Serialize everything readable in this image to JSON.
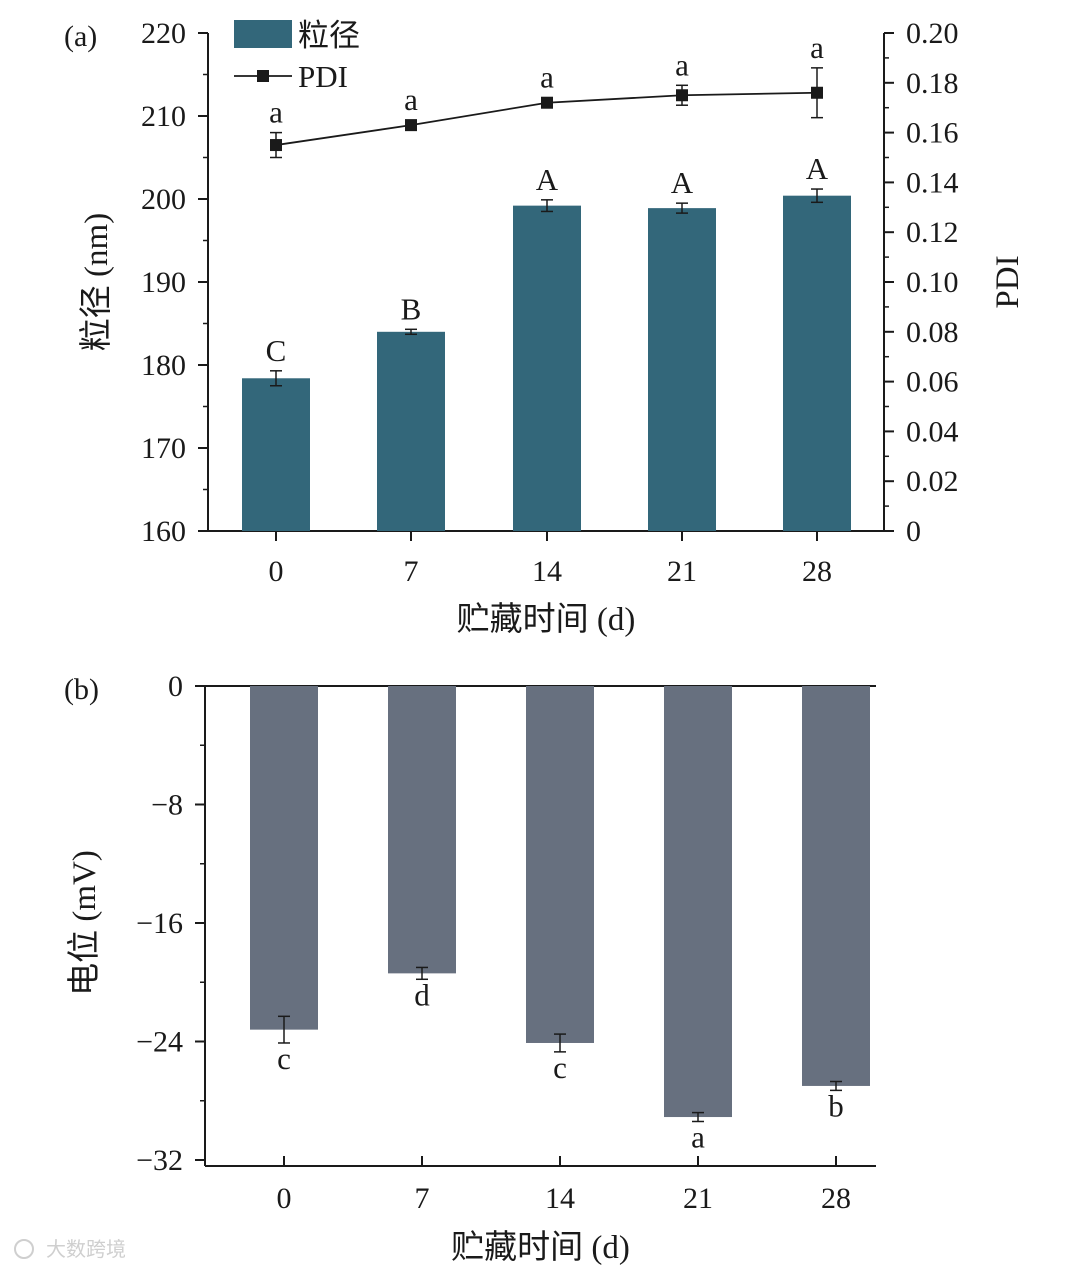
{
  "chart_data": [
    {
      "panel_label": "(a)",
      "type": "bar",
      "categories": [
        "0",
        "7",
        "14",
        "21",
        "28"
      ],
      "xlabel": "贮藏时间 (d)",
      "ylabel": "粒径 (nm)",
      "ylim": [
        160,
        220
      ],
      "yticks": [
        160,
        170,
        180,
        190,
        200,
        210,
        220
      ],
      "y2label": "PDI",
      "y2lim": [
        0,
        0.2
      ],
      "y2ticks": [
        0,
        0.02,
        0.04,
        0.06,
        0.08,
        0.1,
        0.12,
        0.14,
        0.16,
        0.18,
        0.2
      ],
      "y2tick_labels": [
        "0",
        "0.02",
        "0.04",
        "0.06",
        "0.08",
        "0.10",
        "0.12",
        "0.14",
        "0.16",
        "0.18",
        "0.20"
      ],
      "legend_position": "top-left",
      "bar_color": "#33677a",
      "series": [
        {
          "name": "粒径",
          "type": "bar",
          "axis": "left",
          "values": [
            178.4,
            184.0,
            199.2,
            198.9,
            200.4
          ],
          "errors": [
            0.9,
            0.3,
            0.7,
            0.6,
            0.8
          ],
          "significance": [
            "C",
            "B",
            "A",
            "A",
            "A"
          ]
        },
        {
          "name": "PDI",
          "type": "line",
          "axis": "right",
          "values": [
            0.155,
            0.163,
            0.172,
            0.175,
            0.176
          ],
          "errors": [
            0.005,
            0.002,
            0.002,
            0.004,
            0.01
          ],
          "significance": [
            "a",
            "a",
            "a",
            "a",
            "a"
          ]
        }
      ]
    },
    {
      "panel_label": "(b)",
      "type": "bar",
      "categories": [
        "0",
        "7",
        "14",
        "21",
        "28"
      ],
      "xlabel": "贮藏时间 (d)",
      "ylabel": "电位 (mV)",
      "ylim": [
        -32,
        0
      ],
      "yticks": [
        0,
        -8,
        -16,
        -24,
        -32
      ],
      "ytick_labels": [
        "0",
        "−8",
        "−16",
        "−24",
        "−32"
      ],
      "bar_color": "#67707f",
      "series": [
        {
          "name": "电位",
          "values": [
            -23.2,
            -19.4,
            -24.1,
            -29.1,
            -27.0
          ],
          "errors": [
            0.9,
            0.4,
            0.6,
            0.3,
            0.3
          ],
          "significance": [
            "c",
            "d",
            "c",
            "a",
            "b"
          ]
        }
      ]
    }
  ],
  "watermark": "大数跨境"
}
